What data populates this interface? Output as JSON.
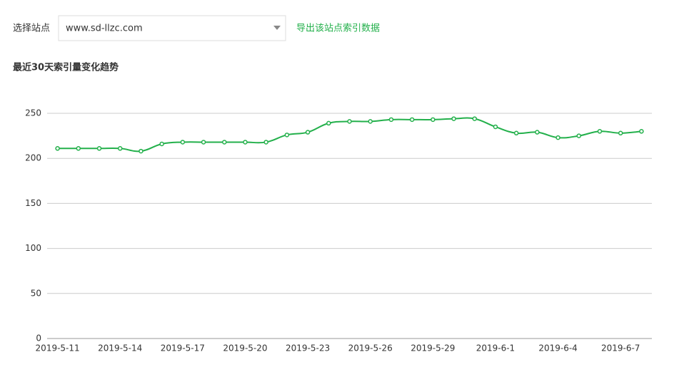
{
  "site_selector": {
    "label": "选择站点",
    "value": "www.sd-llzc.com"
  },
  "export_link": "导出该站点索引数据",
  "chart_data": {
    "type": "line",
    "title": "最近30天索引量变化趋势",
    "categories": [
      "2019-5-11",
      null,
      null,
      "2019-5-14",
      null,
      null,
      "2019-5-17",
      null,
      null,
      "2019-5-20",
      null,
      null,
      "2019-5-23",
      null,
      null,
      "2019-5-26",
      null,
      null,
      "2019-5-29",
      null,
      null,
      "2019-6-1",
      null,
      null,
      "2019-6-4",
      null,
      null,
      "2019-6-7",
      null
    ],
    "values": [
      211,
      211,
      211,
      211,
      208,
      216,
      218,
      218,
      218,
      218,
      218,
      226,
      229,
      239,
      241,
      241,
      243,
      243,
      243,
      244,
      244,
      235,
      228,
      229,
      223,
      225,
      230,
      228,
      230
    ],
    "color": "#23b04b",
    "ylim": [
      0,
      250
    ],
    "yticks": [
      0,
      50,
      100,
      150,
      200,
      250
    ],
    "grid": true
  }
}
